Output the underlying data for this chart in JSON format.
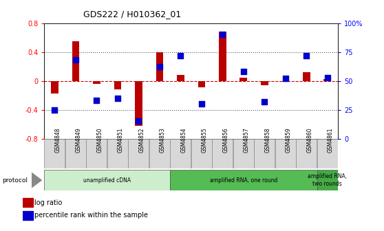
{
  "title": "GDS222 / H010362_01",
  "samples": [
    "GSM4848",
    "GSM4849",
    "GSM4850",
    "GSM4851",
    "GSM4852",
    "GSM4853",
    "GSM4854",
    "GSM4855",
    "GSM4856",
    "GSM4857",
    "GSM4858",
    "GSM4859",
    "GSM4860",
    "GSM4861"
  ],
  "log_ratio": [
    -0.18,
    0.55,
    -0.04,
    -0.12,
    -0.62,
    0.4,
    0.08,
    -0.09,
    0.68,
    0.04,
    -0.06,
    -0.01,
    0.12,
    0.02
  ],
  "percentile": [
    25,
    68,
    33,
    35,
    15,
    62,
    72,
    30,
    90,
    58,
    32,
    52,
    72,
    53
  ],
  "bar_color": "#bb0000",
  "dot_color": "#0000cc",
  "ylim_left": [
    -0.8,
    0.8
  ],
  "ylim_right": [
    0,
    100
  ],
  "yticks_left": [
    -0.8,
    -0.4,
    0.0,
    0.4,
    0.8
  ],
  "yticks_right": [
    0,
    25,
    50,
    75,
    100
  ],
  "ytick_labels_right": [
    "0",
    "25",
    "50",
    "75",
    "100%"
  ],
  "protocol_groups": [
    {
      "label": "unamplified cDNA",
      "start": 0,
      "end": 6,
      "color": "#cceecc"
    },
    {
      "label": "amplified RNA, one round",
      "start": 6,
      "end": 13,
      "color": "#55bb55"
    },
    {
      "label": "amplified RNA,\ntwo rounds",
      "start": 13,
      "end": 14,
      "color": "#44aa44"
    }
  ],
  "legend_items": [
    {
      "color": "#bb0000",
      "label": "log ratio"
    },
    {
      "color": "#0000cc",
      "label": "percentile rank within the sample"
    }
  ],
  "background_color": "#ffffff",
  "zero_line_color": "#cc0000",
  "sample_box_color": "#d8d8d8"
}
